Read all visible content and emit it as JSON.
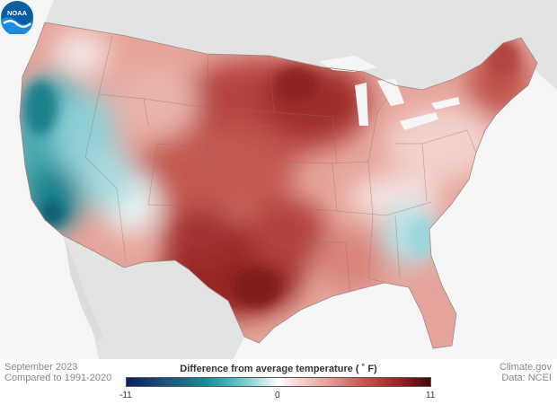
{
  "map": {
    "region": "contiguous-us",
    "variable": "Difference from average temperature",
    "colors": {
      "cold_extreme": "#0c1f5c",
      "cool": "#1b8a98",
      "neutral": "#ffffff",
      "warm": "#c6574d",
      "hot_extreme": "#4a0508",
      "land_background": "#e6e6e6",
      "ocean_background": "#f5f5f5"
    }
  },
  "footer": {
    "date_line": "September 2023",
    "baseline_line": "Compared to 1991-2020",
    "source_site": "Climate.gov",
    "data_source": "Data: NCEI"
  },
  "legend": {
    "title": "Difference from average temperature  ( ˚ F)",
    "min_label": "-11",
    "mid_label": "0",
    "max_label": "11",
    "min_value": -11,
    "max_value": 11
  },
  "logo": {
    "text": "NOAA",
    "icon": "noaa-logo-icon"
  }
}
